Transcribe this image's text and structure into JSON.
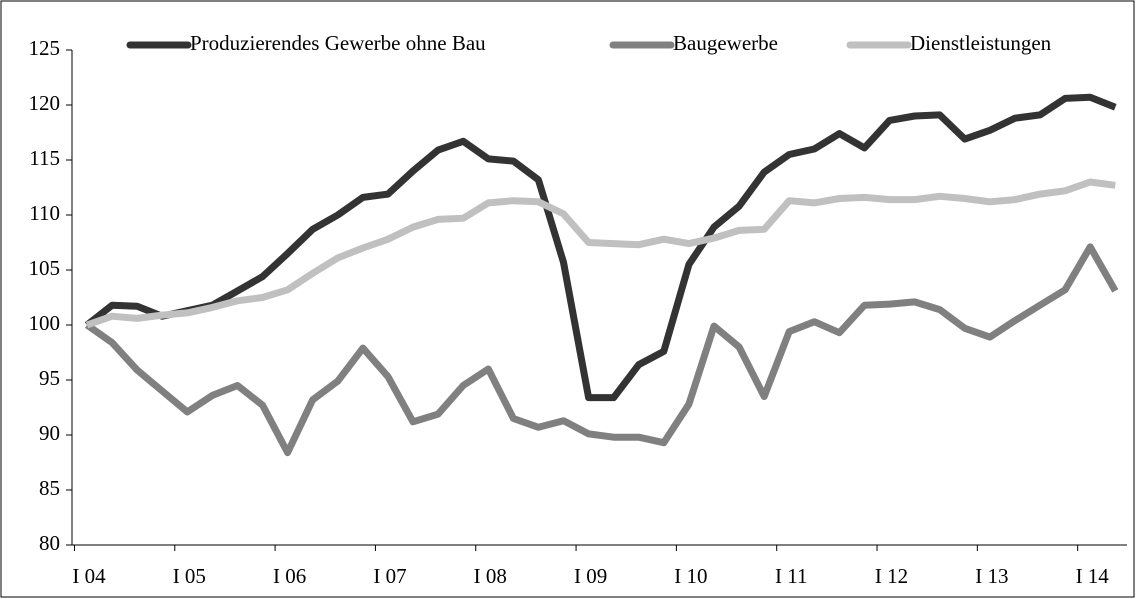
{
  "chart_data": {
    "type": "line",
    "categories": [
      "I 04",
      null,
      null,
      null,
      "I 05",
      null,
      null,
      null,
      "I 06",
      null,
      null,
      null,
      "I 07",
      null,
      null,
      null,
      "I 08",
      null,
      null,
      null,
      "I 09",
      null,
      null,
      null,
      "I 10",
      null,
      null,
      null,
      "I 11",
      null,
      null,
      null,
      "I 12",
      null,
      null,
      null,
      "I 13",
      null,
      null,
      null,
      "I 14",
      null
    ],
    "series": [
      {
        "name": "Produzierendes Gewerbe ohne Bau",
        "color": "#333333",
        "values": [
          100,
          101.8,
          101.7,
          100.8,
          101.3,
          101.8,
          103.1,
          104.4,
          106.5,
          108.7,
          110.0,
          111.6,
          111.9,
          114.0,
          115.9,
          116.7,
          115.1,
          114.9,
          113.2,
          105.7,
          93.4,
          93.4,
          96.4,
          97.6,
          105.5,
          108.9,
          110.8,
          113.9,
          115.5,
          116.0,
          117.4,
          116.1,
          118.6,
          119.0,
          119.1,
          116.9,
          117.7,
          118.8,
          119.1,
          120.6,
          120.7,
          119.8
        ]
      },
      {
        "name": "Baugewerbe",
        "color": "#808080",
        "values": [
          100,
          98.4,
          95.9,
          94.0,
          92.1,
          93.6,
          94.5,
          92.7,
          88.4,
          93.2,
          94.9,
          97.9,
          95.3,
          91.2,
          91.9,
          94.5,
          96.0,
          91.5,
          90.7,
          91.3,
          90.1,
          89.8,
          89.8,
          89.3,
          92.8,
          99.9,
          98.0,
          93.5,
          99.4,
          100.3,
          99.3,
          101.8,
          101.9,
          102.1,
          101.4,
          99.7,
          98.9,
          100.4,
          101.8,
          103.2,
          107.1,
          103.1
        ]
      },
      {
        "name": "Dienstleistungen",
        "color": "#c0c0c0",
        "values": [
          100,
          100.8,
          100.6,
          100.9,
          101.1,
          101.6,
          102.2,
          102.5,
          103.2,
          104.7,
          106.1,
          107.0,
          107.8,
          108.9,
          109.6,
          109.7,
          111.1,
          111.3,
          111.2,
          110.1,
          107.5,
          107.4,
          107.3,
          107.8,
          107.4,
          107.9,
          108.6,
          108.7,
          111.3,
          111.1,
          111.5,
          111.6,
          111.4,
          111.4,
          111.7,
          111.5,
          111.2,
          111.4,
          111.9,
          112.2,
          113.0,
          112.7
        ]
      }
    ],
    "ylim": [
      80,
      125
    ],
    "yticks": [
      80,
      85,
      90,
      95,
      100,
      105,
      110,
      115,
      120,
      125
    ],
    "grid": false,
    "legend": "top"
  }
}
